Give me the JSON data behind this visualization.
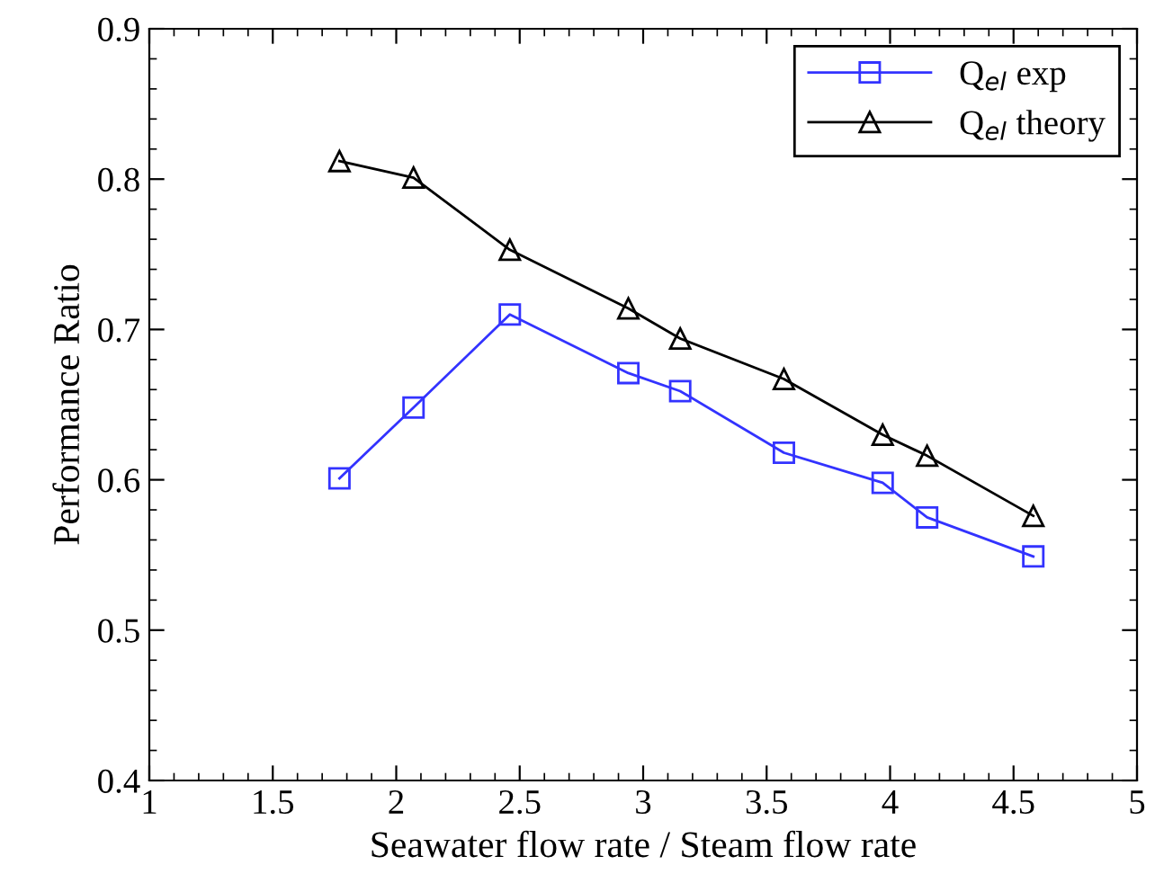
{
  "chart_data": {
    "type": "line",
    "xlabel": "Seawater flow rate / Steam flow rate",
    "ylabel": "Performance Ratio",
    "x": [
      1.77,
      2.07,
      2.46,
      2.94,
      3.15,
      3.57,
      3.97,
      4.15,
      4.58
    ],
    "series": [
      {
        "name": "Q$_{el}$ exp",
        "color": "#3333ff",
        "marker": "square",
        "values": [
          0.601,
          0.648,
          0.71,
          0.671,
          0.659,
          0.618,
          0.598,
          0.575,
          0.549
        ]
      },
      {
        "name": "Q$_{el}$ theory",
        "color": "#000000",
        "marker": "triangle",
        "values": [
          0.812,
          0.801,
          0.753,
          0.714,
          0.694,
          0.667,
          0.63,
          0.616,
          0.576
        ]
      }
    ],
    "xlim": [
      1,
      5
    ],
    "xticks": [
      1,
      1.5,
      2,
      2.5,
      3,
      3.5,
      4,
      4.5,
      5
    ],
    "ylim": [
      0.4,
      0.9
    ],
    "yticks": [
      0.4,
      0.5,
      0.6,
      0.7,
      0.8,
      0.9
    ],
    "grid": false,
    "legend": "top right",
    "line_style": "solid"
  }
}
